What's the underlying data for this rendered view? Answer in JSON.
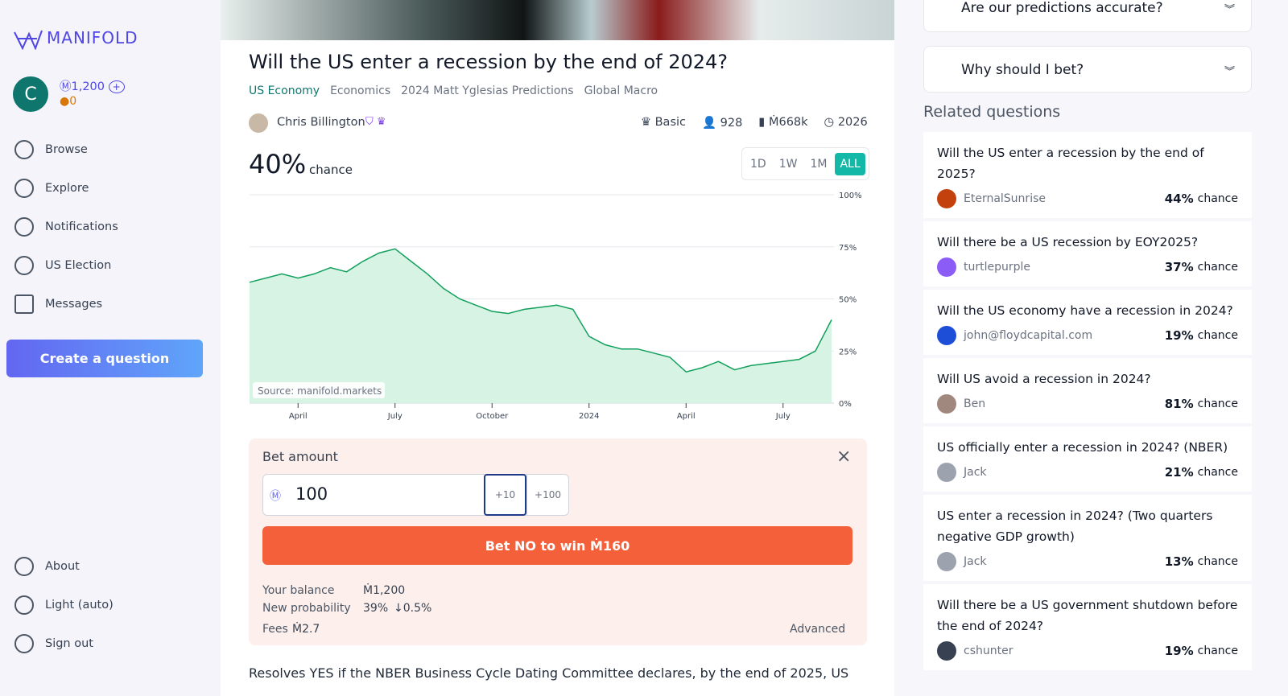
{
  "sidebar": {
    "logo": "MANIFOLD",
    "avatar": "C",
    "balance": "1,200",
    "points": "0",
    "nav": [
      "Browse",
      "Explore",
      "Notifications",
      "US Election",
      "Messages"
    ],
    "create": "Create a question",
    "footer_nav": [
      "About",
      "Light (auto)",
      "Sign out"
    ]
  },
  "market": {
    "title": "Will the US enter a recession by the end of 2024?",
    "tags": [
      "US Economy",
      "Economics",
      "2024 Matt Yglesias Predictions",
      "Global Macro"
    ],
    "author": "Chris Billington",
    "tier": "Basic",
    "traders": "928",
    "volume": "Ṁ668k",
    "close": "2026",
    "probability": "40%",
    "probability_label": "chance",
    "ranges": [
      "1D",
      "1W",
      "1M",
      "ALL"
    ],
    "source": "Source: manifold.markets"
  },
  "chart_data": {
    "type": "area",
    "color": "#12a05c",
    "fill": "#d6f3e4",
    "categories": [
      null,
      null,
      null,
      "April",
      null,
      null,
      null,
      null,
      null,
      "July",
      null,
      null,
      null,
      null,
      null,
      "October",
      null,
      null,
      null,
      null,
      null,
      "2024",
      null,
      null,
      null,
      null,
      null,
      "April",
      null,
      null,
      null,
      null,
      null,
      "July",
      null,
      null,
      null
    ],
    "values": [
      58,
      60,
      62,
      60,
      62,
      65,
      63,
      68,
      72,
      74,
      68,
      62,
      55,
      50,
      47,
      44,
      43,
      45,
      46,
      47,
      45,
      32,
      28,
      26,
      26,
      24,
      22,
      15,
      17,
      20,
      16,
      18,
      19,
      20,
      21,
      25,
      40
    ],
    "ylim": [
      0,
      100
    ],
    "yticks": [
      {
        "value": 0,
        "label": "0%"
      },
      {
        "value": 25,
        "label": "25%"
      },
      {
        "value": 50,
        "label": "50%"
      },
      {
        "value": 75,
        "label": "75%"
      },
      {
        "value": 100,
        "label": "100%"
      }
    ],
    "grid": true
  },
  "bet": {
    "label": "Bet amount",
    "amount": "100",
    "increments": [
      "+10",
      "+100"
    ],
    "button": "Bet NO to win Ṁ160",
    "balance_label": "Your balance",
    "balance": "Ṁ1,200",
    "new_prob_label": "New probability",
    "new_prob": "39%",
    "change": "↓0.5%",
    "fees_label": "Fees",
    "fees": "Ṁ2.7",
    "advanced": "Advanced"
  },
  "description": "Resolves YES if the NBER Business Cycle Dating Committee declares, by the end of 2025, US",
  "side_panels": [
    "Are our predictions accurate?",
    "Why should I bet?"
  ],
  "related": {
    "title": "Related questions",
    "items": [
      {
        "question": "Will the US enter a recession by the end of 2025?",
        "author": "EternalSunrise",
        "probability": "44%",
        "label": "chance"
      },
      {
        "question": "Will there be a US recession by EOY2025?",
        "author": "turtlepurple",
        "probability": "37%",
        "label": "chance"
      },
      {
        "question": "Will the US economy have a recession in 2024?",
        "author": "john@floydcapital.com",
        "probability": "19%",
        "label": "chance"
      },
      {
        "question": "Will US avoid a recession in 2024?",
        "author": "Ben",
        "probability": "81%",
        "label": "chance"
      },
      {
        "question": "US officially enter a recession in 2024? (NBER)",
        "author": "Jack",
        "probability": "21%",
        "label": "chance"
      },
      {
        "question": "US enter a recession in 2024? (Two quarters negative GDP growth)",
        "author": "Jack",
        "probability": "13%",
        "label": "chance"
      },
      {
        "question": "Will there be a US government shutdown before the end of 2024?",
        "author": "cshunter",
        "probability": "19%",
        "label": "chance"
      }
    ]
  }
}
